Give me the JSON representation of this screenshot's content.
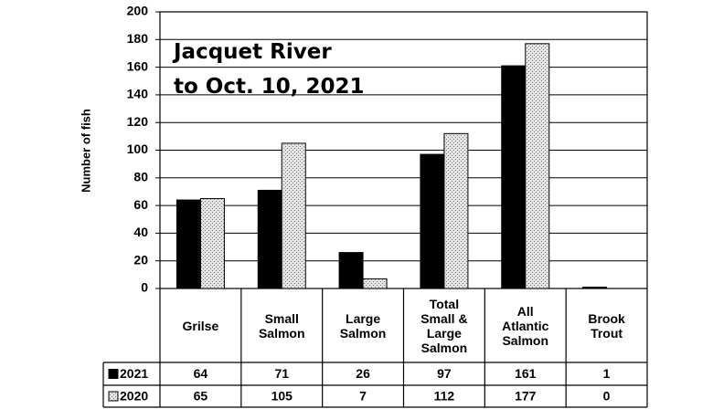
{
  "chart_data": {
    "type": "bar",
    "title": "Jacquet River",
    "subtitle": "to Oct. 10, 2021",
    "y_label": "Number of fish",
    "categories": [
      "Grilse",
      "Small Salmon",
      "Large Salmon",
      "Total Small & Large Salmon",
      "All Atlantic Salmon",
      "Brook Trout"
    ],
    "series": [
      {
        "name": "2021",
        "color": "#000000",
        "values": [
          64,
          71,
          26,
          97,
          161,
          1
        ]
      },
      {
        "name": "2020",
        "color": "#e4e4e4",
        "values": [
          65,
          105,
          7,
          112,
          177,
          0
        ]
      }
    ],
    "ylim": [
      0,
      200
    ],
    "yticks": [
      0,
      20,
      40,
      60,
      80,
      100,
      120,
      140,
      160,
      180,
      200
    ],
    "grid": true
  }
}
